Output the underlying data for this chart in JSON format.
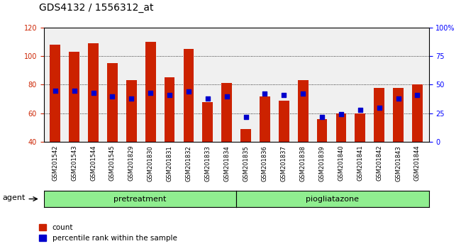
{
  "title": "GDS4132 / 1556312_at",
  "samples": [
    "GSM201542",
    "GSM201543",
    "GSM201544",
    "GSM201545",
    "GSM201829",
    "GSM201830",
    "GSM201831",
    "GSM201832",
    "GSM201833",
    "GSM201834",
    "GSM201835",
    "GSM201836",
    "GSM201837",
    "GSM201838",
    "GSM201839",
    "GSM201840",
    "GSM201841",
    "GSM201842",
    "GSM201843",
    "GSM201844"
  ],
  "counts": [
    108,
    103,
    109,
    95,
    83,
    110,
    85,
    105,
    68,
    81,
    49,
    72,
    69,
    83,
    56,
    60,
    60,
    78,
    78,
    80
  ],
  "percentiles": [
    45,
    45,
    43,
    40,
    38,
    43,
    41,
    44,
    38,
    40,
    22,
    42,
    41,
    42,
    22,
    24,
    28,
    30,
    38,
    41
  ],
  "pretreatment_count": 10,
  "group1_label": "pretreatment",
  "group2_label": "piogliatazone",
  "ylim_left": [
    40,
    120
  ],
  "ylim_right": [
    0,
    100
  ],
  "yticks_left": [
    40,
    60,
    80,
    100,
    120
  ],
  "yticks_right": [
    0,
    25,
    50,
    75,
    100
  ],
  "bar_color": "#cc2200",
  "dot_color": "#0000cc",
  "bar_width": 0.55,
  "background_plot": "#f0f0f0",
  "background_group": "#90ee90",
  "agent_label": "agent",
  "legend_count": "count",
  "legend_pct": "percentile rank within the sample",
  "title_fontsize": 10,
  "tick_fontsize": 7
}
